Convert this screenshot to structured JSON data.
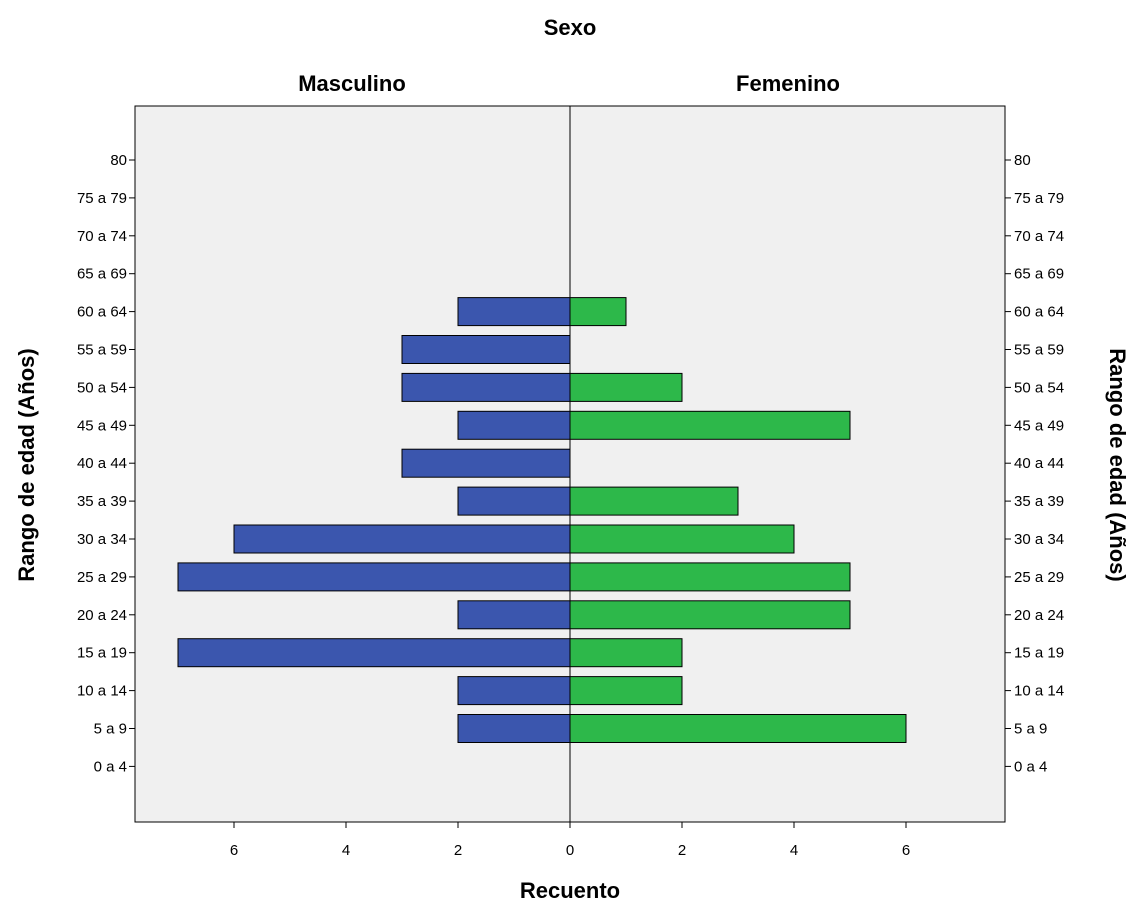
{
  "chart_data": {
    "type": "bar",
    "orientation": "horizontal-pyramid",
    "title": "Sexo",
    "xlabel": "Recuento",
    "ylabel": "Rango de edad (Años)",
    "categories": [
      "80",
      "75 a 79",
      "70 a 74",
      "65 a 69",
      "60 a 64",
      "55 a 59",
      "50 a 54",
      "45 a 49",
      "40 a 44",
      "35 a 39",
      "30 a 34",
      "25 a 29",
      "20 a 24",
      "15 a 19",
      "10 a 14",
      "5 a 9",
      "0 a 4"
    ],
    "series": [
      {
        "name": "Masculino",
        "color": "#3b56ae",
        "values": [
          0,
          0,
          0,
          0,
          2,
          3,
          3,
          2,
          3,
          2,
          6,
          7,
          2,
          7,
          2,
          2,
          0
        ]
      },
      {
        "name": "Femenino",
        "color": "#2db84a",
        "values": [
          0,
          0,
          0,
          0,
          1,
          0,
          2,
          5,
          0,
          3,
          4,
          5,
          5,
          2,
          2,
          6,
          0
        ]
      }
    ],
    "xlim": [
      0,
      7.8
    ],
    "xticks": [
      "6",
      "4",
      "2",
      "0",
      "2",
      "4",
      "6"
    ],
    "xtick_values": [
      -6,
      -4,
      -2,
      0,
      2,
      4,
      6
    ],
    "panel_background": "#f0f0f0",
    "grid": false
  }
}
